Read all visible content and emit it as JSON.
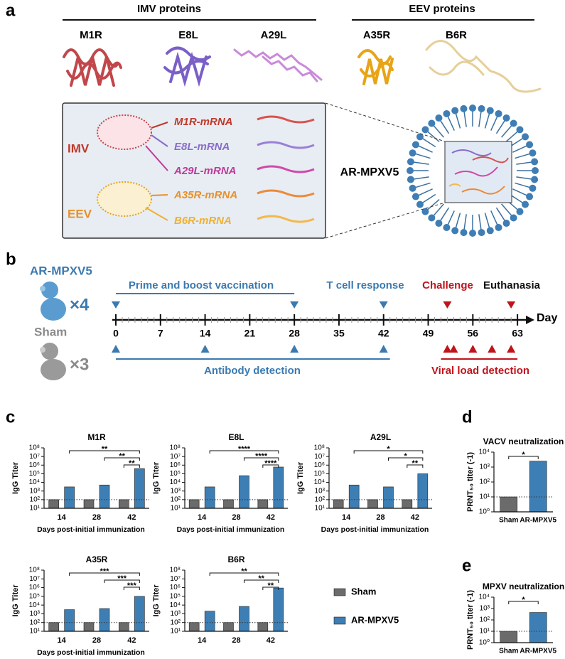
{
  "panel_a": {
    "label": "a",
    "imv_title": "IMV proteins",
    "eev_title": "EEV proteins",
    "proteins": [
      "M1R",
      "E8L",
      "A29L",
      "A35R",
      "B6R"
    ],
    "groups": [
      "IMV",
      "EEV"
    ],
    "mrnas": [
      "M1R-mRNA",
      "E8L-mRNA",
      "A29L-mRNA",
      "A35R-mRNA",
      "B6R-mRNA"
    ],
    "vaccine": "AR-MPXV5"
  },
  "panel_b": {
    "label": "b",
    "groups": [
      {
        "name": "AR-MPXV5",
        "count": "×4"
      },
      {
        "name": "Sham",
        "count": "×3"
      }
    ],
    "phases": [
      "Prime and boost vaccination",
      "T cell response",
      "Challenge",
      "Euthanasia",
      "Antibody detection",
      "Viral load detection"
    ],
    "axis_label": "Day",
    "ticks": [
      0,
      7,
      14,
      21,
      28,
      35,
      42,
      49,
      56,
      63
    ],
    "vaccination_days": [
      0,
      28
    ],
    "t_cell_days": [
      42
    ],
    "challenge_days": [
      52
    ],
    "euthanasia_days": [
      62
    ],
    "antibody_days": [
      0,
      14,
      28,
      42
    ],
    "viral_load_days": [
      52,
      53,
      56,
      59,
      62
    ]
  },
  "panel_labels": [
    "c",
    "d",
    "e"
  ],
  "chart_data": [
    {
      "type": "bar",
      "title": "M1R",
      "categories": [
        "14",
        "28",
        "42"
      ],
      "series": [
        {
          "name": "Sham",
          "color": "#6b6b6b",
          "values": [
            100,
            100,
            100
          ]
        },
        {
          "name": "AR-MPXV5",
          "color": "#3d7fb5",
          "values": [
            3000,
            5000,
            400000
          ]
        }
      ],
      "ylim": [
        10,
        100000000
      ],
      "log_scale": true,
      "yticks": [
        {
          "value": 10,
          "label": "10¹"
        },
        {
          "value": 100,
          "label": "10²"
        },
        {
          "value": 1000,
          "label": "10³"
        },
        {
          "value": 10000,
          "label": "10⁴"
        },
        {
          "value": 100000,
          "label": "10⁵"
        },
        {
          "value": 1000000,
          "label": "10⁶"
        },
        {
          "value": 10000000,
          "label": "10⁷"
        },
        {
          "value": 100000000,
          "label": "10⁸"
        }
      ],
      "ylabel": "IgG Titer",
      "xlabel": "Days post-initial immunization",
      "reference_line": 100,
      "significance": [
        "**",
        "**",
        "**"
      ]
    },
    {
      "type": "bar",
      "title": "E8L",
      "categories": [
        "14",
        "28",
        "42"
      ],
      "series": [
        {
          "name": "Sham",
          "color": "#6b6b6b",
          "values": [
            100,
            100,
            100
          ]
        },
        {
          "name": "AR-MPXV5",
          "color": "#3d7fb5",
          "values": [
            3000,
            60000,
            600000
          ]
        }
      ],
      "ylim": [
        10,
        100000000
      ],
      "log_scale": true,
      "yticks": [
        {
          "value": 10,
          "label": "10¹"
        },
        {
          "value": 100,
          "label": "10²"
        },
        {
          "value": 1000,
          "label": "10³"
        },
        {
          "value": 10000,
          "label": "10⁴"
        },
        {
          "value": 100000,
          "label": "10⁵"
        },
        {
          "value": 1000000,
          "label": "10⁶"
        },
        {
          "value": 10000000,
          "label": "10⁷"
        },
        {
          "value": 100000000,
          "label": "10⁸"
        }
      ],
      "ylabel": "IgG Titer",
      "xlabel": "Days post-initial immunization",
      "reference_line": 100,
      "significance": [
        "****",
        "****",
        "****"
      ]
    },
    {
      "type": "bar",
      "title": "A29L",
      "categories": [
        "14",
        "28",
        "42"
      ],
      "series": [
        {
          "name": "Sham",
          "color": "#6b6b6b",
          "values": [
            100,
            100,
            100
          ]
        },
        {
          "name": "AR-MPXV5",
          "color": "#3d7fb5",
          "values": [
            5000,
            3000,
            100000
          ]
        }
      ],
      "ylim": [
        10,
        100000000
      ],
      "log_scale": true,
      "yticks": [
        {
          "value": 10,
          "label": "10¹"
        },
        {
          "value": 100,
          "label": "10²"
        },
        {
          "value": 1000,
          "label": "10³"
        },
        {
          "value": 10000,
          "label": "10⁴"
        },
        {
          "value": 100000,
          "label": "10⁵"
        },
        {
          "value": 1000000,
          "label": "10⁶"
        },
        {
          "value": 10000000,
          "label": "10⁷"
        },
        {
          "value": 100000000,
          "label": "10⁸"
        }
      ],
      "ylabel": "IgG Titer",
      "xlabel": "Days post-initial immunization",
      "reference_line": 100,
      "significance": [
        "*",
        "*",
        "**"
      ]
    },
    {
      "type": "bar",
      "title": "A35R",
      "categories": [
        "14",
        "28",
        "42"
      ],
      "series": [
        {
          "name": "Sham",
          "color": "#6b6b6b",
          "values": [
            100,
            100,
            100
          ]
        },
        {
          "name": "AR-MPXV5",
          "color": "#3d7fb5",
          "values": [
            3000,
            4000,
            100000
          ]
        }
      ],
      "ylim": [
        10,
        100000000
      ],
      "log_scale": true,
      "yticks": [
        {
          "value": 10,
          "label": "10¹"
        },
        {
          "value": 100,
          "label": "10²"
        },
        {
          "value": 1000,
          "label": "10³"
        },
        {
          "value": 10000,
          "label": "10⁴"
        },
        {
          "value": 100000,
          "label": "10⁵"
        },
        {
          "value": 1000000,
          "label": "10⁶"
        },
        {
          "value": 10000000,
          "label": "10⁷"
        },
        {
          "value": 100000000,
          "label": "10⁸"
        }
      ],
      "ylabel": "IgG Titer",
      "xlabel": "Days post-initial immunization",
      "reference_line": 100,
      "significance": [
        "***",
        "***",
        "***"
      ]
    },
    {
      "type": "bar",
      "title": "B6R",
      "categories": [
        "14",
        "28",
        "42"
      ],
      "series": [
        {
          "name": "Sham",
          "color": "#6b6b6b",
          "values": [
            100,
            100,
            100
          ]
        },
        {
          "name": "AR-MPXV5",
          "color": "#3d7fb5",
          "values": [
            2000,
            7000,
            900000
          ]
        }
      ],
      "ylim": [
        10,
        100000000
      ],
      "log_scale": true,
      "yticks": [
        {
          "value": 10,
          "label": "10¹"
        },
        {
          "value": 100,
          "label": "10²"
        },
        {
          "value": 1000,
          "label": "10³"
        },
        {
          "value": 10000,
          "label": "10⁴"
        },
        {
          "value": 100000,
          "label": "10⁵"
        },
        {
          "value": 1000000,
          "label": "10⁶"
        },
        {
          "value": 10000000,
          "label": "10⁷"
        },
        {
          "value": 100000000,
          "label": "10⁸"
        }
      ],
      "ylabel": "IgG Titer",
      "reference_line": 100,
      "significance": [
        "**",
        "**",
        "**"
      ]
    },
    {
      "type": "bar",
      "title": "VACV neutralization",
      "categories": [
        "Sham",
        "AR-MPXV5"
      ],
      "values": [
        10,
        2500
      ],
      "colors": [
        "#6b6b6b",
        "#3d7fb5"
      ],
      "ylim": [
        1,
        10000
      ],
      "log_scale": true,
      "yticks": [
        {
          "value": 1,
          "label": "10⁰"
        },
        {
          "value": 10,
          "label": "10¹"
        },
        {
          "value": 100,
          "label": "10²"
        },
        {
          "value": 1000,
          "label": "10³"
        },
        {
          "value": 10000,
          "label": "10⁴"
        }
      ],
      "ylabel": "PRNT₅₀ titer (-1)",
      "reference_line": 10,
      "significance": [
        "*"
      ]
    },
    {
      "type": "bar",
      "title": "MPXV neutralization",
      "categories": [
        "Sham",
        "AR-MPXV5"
      ],
      "values": [
        10,
        450
      ],
      "colors": [
        "#6b6b6b",
        "#3d7fb5"
      ],
      "ylim": [
        1,
        10000
      ],
      "log_scale": true,
      "yticks": [
        {
          "value": 1,
          "label": "10⁰"
        },
        {
          "value": 10,
          "label": "10¹"
        },
        {
          "value": 100,
          "label": "10²"
        },
        {
          "value": 1000,
          "label": "10³"
        },
        {
          "value": 10000,
          "label": "10⁴"
        }
      ],
      "ylabel": "PRNT₅₀ titer (-1)",
      "reference_line": 10,
      "significance": [
        "*"
      ]
    }
  ]
}
